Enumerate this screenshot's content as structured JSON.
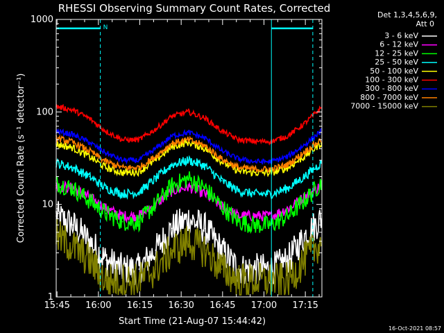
{
  "chart_data": {
    "type": "line",
    "title": "RHESSI Observing Summary Count Rates, Corrected",
    "xlabel": "Start Time (21-Aug-07 15:44:42)",
    "ylabel": "Corrected Count Rate (s⁻¹ detector⁻¹)",
    "yscale": "log",
    "ylim": [
      1,
      1000
    ],
    "xlim": [
      "15:44:42",
      "17:21:00"
    ],
    "x_ticks": [
      "15:45",
      "16:00",
      "16:15",
      "16:30",
      "16:45",
      "17:00",
      "17:15"
    ],
    "y_ticks": [
      "1",
      "10",
      "100",
      "1000"
    ],
    "grid": false,
    "legend_position": "top-right",
    "legend_header": [
      "Det 1,3,4,5,6,9,",
      "Att 0"
    ],
    "x_minutes": [
      0,
      6,
      12,
      18,
      24,
      30,
      36,
      42,
      48,
      54,
      60,
      66,
      72,
      78,
      84,
      90,
      96
    ],
    "series": [
      {
        "name": "3 - 6 keV",
        "color": "#ffffff",
        "noise": 0.35,
        "values": [
          7.5,
          6.0,
          4.0,
          2.5,
          2.0,
          2.0,
          3.2,
          5.5,
          7.0,
          5.5,
          3.2,
          2.0,
          2.0,
          2.0,
          2.5,
          4.5,
          7.0
        ]
      },
      {
        "name": "6 - 12 keV",
        "color": "#ff00ff",
        "noise": 0.12,
        "values": [
          16,
          15,
          12,
          9,
          7.5,
          7.5,
          10,
          14,
          15.5,
          13,
          9.5,
          7.5,
          7.5,
          7.5,
          9,
          12,
          16
        ]
      },
      {
        "name": "12 - 25 keV",
        "color": "#00ff00",
        "noise": 0.2,
        "values": [
          17,
          15,
          11,
          8,
          6.5,
          6.5,
          10,
          16,
          19,
          15,
          9.5,
          6.5,
          6,
          6,
          7.5,
          11,
          17
        ]
      },
      {
        "name": "25 - 50 keV",
        "color": "#00ffff",
        "noise": 0.1,
        "values": [
          28,
          25,
          20,
          15,
          13,
          13.5,
          19,
          27,
          30,
          26,
          18,
          14,
          13,
          13,
          15,
          20,
          28
        ]
      },
      {
        "name": "50 - 100 keV",
        "color": "#ffff00",
        "noise": 0.08,
        "values": [
          45,
          41,
          33,
          25,
          22,
          22.5,
          30,
          42,
          47,
          40,
          29,
          23,
          22,
          22,
          25,
          33,
          46
        ]
      },
      {
        "name": "100 - 300 keV",
        "color": "#ff0000",
        "noise": 0.06,
        "values": [
          115,
          105,
          85,
          62,
          50,
          50,
          65,
          90,
          100,
          85,
          62,
          50,
          48,
          48,
          55,
          75,
          110
        ]
      },
      {
        "name": "300 - 800 keV",
        "color": "#0000ff",
        "noise": 0.06,
        "values": [
          62,
          57,
          47,
          36,
          30,
          30,
          40,
          55,
          60,
          52,
          38,
          31,
          29,
          29,
          33,
          44,
          62
        ]
      },
      {
        "name": "800 - 7000 keV",
        "color": "#ff7f00",
        "noise": 0.07,
        "values": [
          52,
          47,
          38,
          29,
          25,
          25,
          33,
          46,
          50,
          43,
          31,
          25,
          24,
          24,
          27,
          37,
          50
        ]
      },
      {
        "name": "7000 - 15000 keV",
        "color": "#808000",
        "noise": 0.4,
        "values": [
          4.5,
          3.5,
          2.5,
          1.5,
          1.5,
          1.5,
          2.0,
          3.2,
          4.0,
          3.2,
          2.0,
          1.5,
          1.5,
          1.5,
          1.5,
          2.5,
          4.0
        ]
      }
    ],
    "markers": {
      "color": "#00ffff",
      "solid_lines_minutes": [
        0,
        78
      ],
      "dashed_lines_minutes": [
        16,
        93
      ],
      "bars": [
        {
          "from_minutes": 0,
          "to_minutes": 16
        },
        {
          "from_minutes": 78,
          "to_minutes": 93
        }
      ],
      "bar_level": 800,
      "flag_label": "N"
    },
    "footer_timestamp": "16-Oct-2021 08:57"
  }
}
